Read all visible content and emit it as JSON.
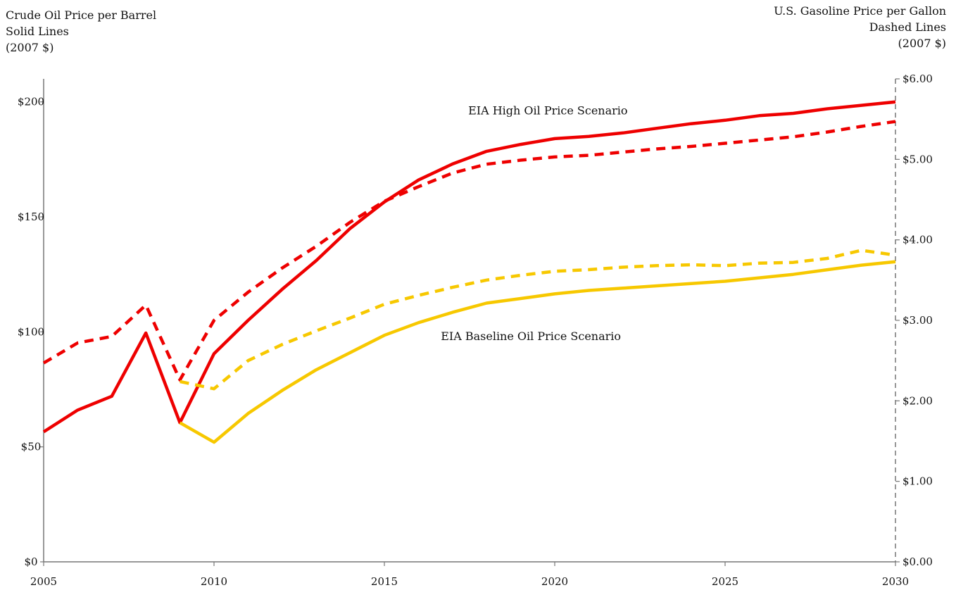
{
  "left_axis_title": {
    "line1": "Crude Oil Price per Barrel",
    "line2": "Solid Lines",
    "line3": "(2007 $)"
  },
  "right_axis_title": {
    "line1": "U.S. Gasoline Price per Gallon",
    "line2": "Dashed Lines",
    "line3": "(2007 $)"
  },
  "chart_data": {
    "type": "line",
    "x_ticks": [
      2005,
      2010,
      2015,
      2020,
      2025,
      2030
    ],
    "xlim": [
      2005,
      2030
    ],
    "left_axis": {
      "ylim": [
        0,
        210
      ],
      "ticks": [
        "$0",
        "$50",
        "$100",
        "$150",
        "$200"
      ],
      "tick_values": [
        0,
        50,
        100,
        150,
        200
      ]
    },
    "right_axis": {
      "ylim": [
        0,
        6
      ],
      "ticks": [
        "$0.00",
        "$1.00",
        "$2.00",
        "$3.00",
        "$4.00",
        "$5.00",
        "$6.00"
      ],
      "tick_values": [
        0,
        1,
        2,
        3,
        4,
        5,
        6
      ]
    },
    "annotations": [
      {
        "text": "EIA High Oil Price Scenario",
        "x": 2019.8,
        "y": 196
      },
      {
        "text": "EIA Baseline Oil Price Scenario",
        "x": 2019.3,
        "y": 98
      }
    ],
    "series": [
      {
        "axis": "left",
        "style": "solid",
        "color": "#ee0000",
        "x": [
          2005,
          2006,
          2007,
          2008,
          2009,
          2010,
          2011,
          2012,
          2013,
          2014,
          2015,
          2016,
          2017,
          2018,
          2019,
          2020,
          2021,
          2022,
          2023,
          2024,
          2025,
          2026,
          2027,
          2028,
          2029,
          2030
        ],
        "values": [
          56.5,
          66,
          72,
          99.5,
          60.5,
          90.5,
          105,
          118.5,
          131,
          145,
          156.5,
          166,
          173,
          178.5,
          181.5,
          184,
          185,
          186.5,
          188.5,
          190.5,
          192,
          194,
          195,
          197,
          198.5,
          200
        ]
      },
      {
        "axis": "right",
        "style": "dashed",
        "color": "#ee0000",
        "x": [
          2005,
          2006,
          2007,
          2008,
          2009,
          2010,
          2011,
          2012,
          2013,
          2014,
          2015,
          2016,
          2017,
          2018,
          2019,
          2020,
          2021,
          2022,
          2023,
          2024,
          2025,
          2026,
          2027,
          2028,
          2029,
          2030
        ],
        "values": [
          2.47,
          2.72,
          2.8,
          3.19,
          2.26,
          3.0,
          3.35,
          3.65,
          3.92,
          4.22,
          4.48,
          4.66,
          4.83,
          4.94,
          4.99,
          5.03,
          5.05,
          5.09,
          5.13,
          5.16,
          5.2,
          5.24,
          5.28,
          5.34,
          5.41,
          5.47
        ]
      },
      {
        "axis": "left",
        "style": "solid",
        "color": "#f7c800",
        "x": [
          2009,
          2010,
          2011,
          2012,
          2013,
          2014,
          2015,
          2016,
          2017,
          2018,
          2019,
          2020,
          2021,
          2022,
          2023,
          2024,
          2025,
          2026,
          2027,
          2028,
          2029,
          2030
        ],
        "values": [
          60.5,
          52,
          64.5,
          74.5,
          83.5,
          91,
          98.5,
          104,
          108.5,
          112.5,
          114.5,
          116.5,
          118,
          119,
          120,
          121,
          122,
          123.5,
          125,
          127,
          129,
          130.5
        ]
      },
      {
        "axis": "right",
        "style": "dashed",
        "color": "#f7c800",
        "x": [
          2009,
          2010,
          2011,
          2012,
          2013,
          2014,
          2015,
          2016,
          2017,
          2018,
          2019,
          2020,
          2021,
          2022,
          2023,
          2024,
          2025,
          2026,
          2027,
          2028,
          2029,
          2030
        ],
        "values": [
          2.24,
          2.15,
          2.5,
          2.7,
          2.87,
          3.03,
          3.2,
          3.31,
          3.41,
          3.5,
          3.56,
          3.61,
          3.63,
          3.66,
          3.68,
          3.69,
          3.68,
          3.71,
          3.72,
          3.77,
          3.87,
          3.81
        ]
      }
    ]
  }
}
